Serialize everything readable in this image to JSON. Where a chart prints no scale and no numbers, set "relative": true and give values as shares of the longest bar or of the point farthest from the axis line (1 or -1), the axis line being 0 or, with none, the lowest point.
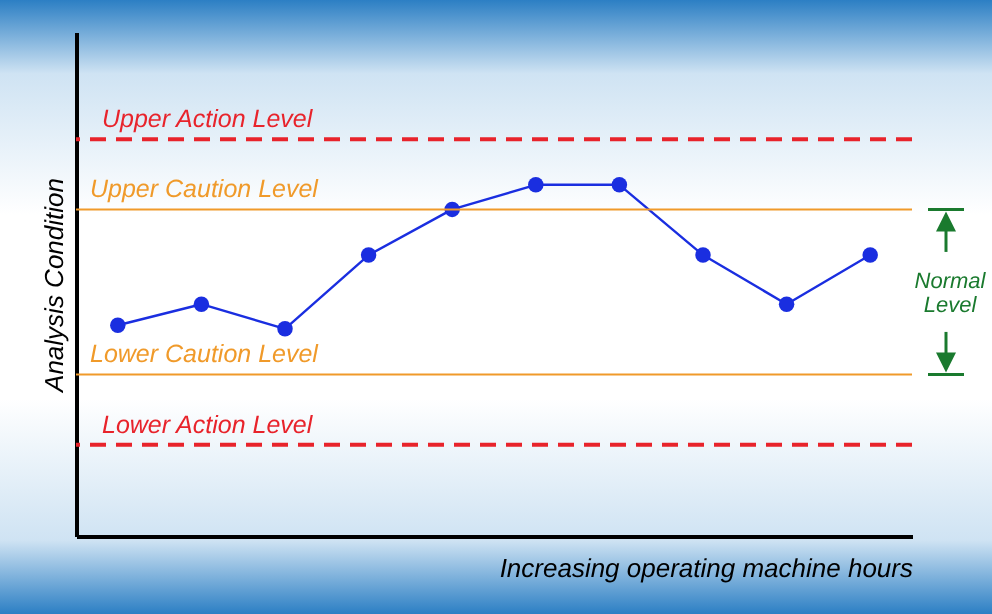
{
  "chart_data": {
    "type": "line",
    "relative": true,
    "xlabel": "Increasing operating machine hours",
    "ylabel": "Analysis Condition",
    "categories": [
      null,
      null,
      null,
      null,
      null,
      null,
      null,
      null,
      null,
      null
    ],
    "series": [
      {
        "color": "#1a2ee0",
        "values": [
          0.6,
          0.66,
          0.59,
          0.8,
          0.93,
          1,
          1,
          0.8,
          0.66,
          0.8
        ]
      }
    ],
    "marker": "circle",
    "line_style": "solid",
    "ref_lines": [
      {
        "axis": "y",
        "value": 1.13,
        "label": "Upper Action Level",
        "color": "#e8232b",
        "line_style": "dashed"
      },
      {
        "axis": "y",
        "value": 0.93,
        "label": "Upper Caution Level",
        "color": "#f09a2a",
        "line_style": "solid"
      },
      {
        "axis": "y",
        "value": 0.46,
        "label": "Lower Caution Level",
        "color": "#f09a2a",
        "line_style": "solid"
      },
      {
        "axis": "y",
        "value": 0.26,
        "label": "Lower Action Level",
        "color": "#e8232b",
        "line_style": "dashed"
      }
    ],
    "annotations": [
      "Normal Level"
    ]
  }
}
